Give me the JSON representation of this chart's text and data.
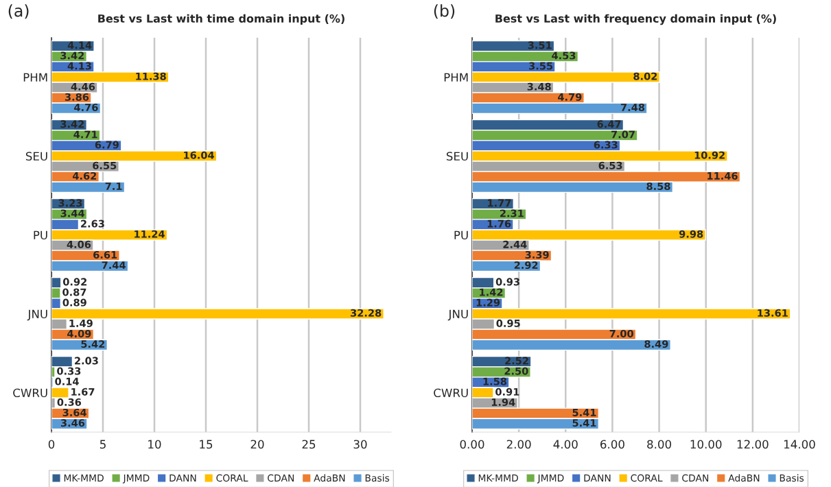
{
  "chart_data": [
    {
      "type": "bar",
      "orientation": "horizontal",
      "title": "Best vs Last with time domain input (%)",
      "annotations": [
        "(a)"
      ],
      "categories": [
        "PHM",
        "SEU",
        "PU",
        "JNU",
        "CWRU"
      ],
      "series": [
        {
          "name": "MK-MMD",
          "color": "#335f8c",
          "values": [
            4.14,
            3.42,
            3.23,
            0.92,
            2.03
          ],
          "value_labels": [
            "4.14",
            "3.42",
            "3.23",
            "0.92",
            "2.03"
          ]
        },
        {
          "name": "JMMD",
          "color": "#70ad47",
          "values": [
            3.42,
            4.71,
            3.44,
            0.87,
            0.33
          ],
          "value_labels": [
            "3.42",
            "4.71",
            "3.44",
            "0.87",
            "0.33"
          ]
        },
        {
          "name": "DANN",
          "color": "#4472c4",
          "values": [
            4.13,
            6.79,
            2.63,
            0.89,
            0.14
          ],
          "value_labels": [
            "4.13",
            "6.79",
            "2.63",
            "0.89",
            "0.14"
          ]
        },
        {
          "name": "CORAL",
          "color": "#ffc000",
          "values": [
            11.38,
            16.04,
            11.24,
            32.28,
            1.67
          ],
          "value_labels": [
            "11.38",
            "16.04",
            "11.24",
            "32.28",
            "1.67"
          ]
        },
        {
          "name": "CDAN",
          "color": "#a5a5a5",
          "values": [
            4.46,
            6.55,
            4.06,
            1.49,
            0.36
          ],
          "value_labels": [
            "4.46",
            "6.55",
            "4.06",
            "1.49",
            "0.36"
          ]
        },
        {
          "name": "AdaBN",
          "color": "#ed7d31",
          "values": [
            3.86,
            4.62,
            6.61,
            4.09,
            3.64
          ],
          "value_labels": [
            "3.86",
            "4.62",
            "6.61",
            "4.09",
            "3.64"
          ]
        },
        {
          "name": "Basis",
          "color": "#5b9bd5",
          "values": [
            4.76,
            7.1,
            7.44,
            5.42,
            3.46
          ],
          "value_labels": [
            "4.76",
            "7.1",
            "7.44",
            "5.42",
            "3.46"
          ]
        }
      ],
      "xlim": [
        0,
        33
      ],
      "xticks": [
        0,
        5,
        10,
        15,
        20,
        25,
        30
      ],
      "grid": "x",
      "legend": "bottom"
    },
    {
      "type": "bar",
      "orientation": "horizontal",
      "title": "Best vs Last with frequency domain input (%)",
      "annotations": [
        "(b)"
      ],
      "categories": [
        "PHM",
        "SEU",
        "PU",
        "JNU",
        "CWRU"
      ],
      "series": [
        {
          "name": "MK-MMD",
          "color": "#335f8c",
          "values": [
            3.51,
            6.47,
            1.77,
            0.93,
            2.52
          ],
          "value_labels": [
            "3.51",
            "6.47",
            "1.77",
            "0.93",
            "2.52"
          ]
        },
        {
          "name": "JMMD",
          "color": "#70ad47",
          "values": [
            4.53,
            7.07,
            2.31,
            1.42,
            2.5
          ],
          "value_labels": [
            "4.53",
            "7.07",
            "2.31",
            "1.42",
            "2.50"
          ]
        },
        {
          "name": "DANN",
          "color": "#4472c4",
          "values": [
            3.55,
            6.33,
            1.76,
            1.29,
            1.58
          ],
          "value_labels": [
            "3.55",
            "6.33",
            "1.76",
            "1.29",
            "1.58"
          ]
        },
        {
          "name": "CORAL",
          "color": "#ffc000",
          "values": [
            8.02,
            10.92,
            9.98,
            13.61,
            0.91
          ],
          "value_labels": [
            "8.02",
            "10.92",
            "9.98",
            "13.61",
            "0.91"
          ]
        },
        {
          "name": "CDAN",
          "color": "#a5a5a5",
          "values": [
            3.48,
            6.53,
            2.44,
            0.95,
            1.94
          ],
          "value_labels": [
            "3.48",
            "6.53",
            "2.44",
            "0.95",
            "1.94"
          ]
        },
        {
          "name": "AdaBN",
          "color": "#ed7d31",
          "values": [
            4.79,
            11.46,
            3.39,
            7.0,
            5.41
          ],
          "value_labels": [
            "4.79",
            "11.46",
            "3.39",
            "7.00",
            "5.41"
          ]
        },
        {
          "name": "Basis",
          "color": "#5b9bd5",
          "values": [
            7.48,
            8.58,
            2.92,
            8.49,
            5.41
          ],
          "value_labels": [
            "7.48",
            "8.58",
            "2.92",
            "8.49",
            "5.41"
          ]
        }
      ],
      "xlim": [
        0,
        14
      ],
      "xticks": [
        {
          "value": 0,
          "label": "0.00"
        },
        {
          "value": 2,
          "label": "2.00"
        },
        {
          "value": 4,
          "label": "4.00"
        },
        {
          "value": 6,
          "label": "6.00"
        },
        {
          "value": 8,
          "label": "8.00"
        },
        {
          "value": 10,
          "label": "10.00"
        },
        {
          "value": 12,
          "label": "12.00"
        },
        {
          "value": 14,
          "label": "14.00"
        }
      ],
      "grid": "x",
      "legend": "bottom"
    }
  ]
}
